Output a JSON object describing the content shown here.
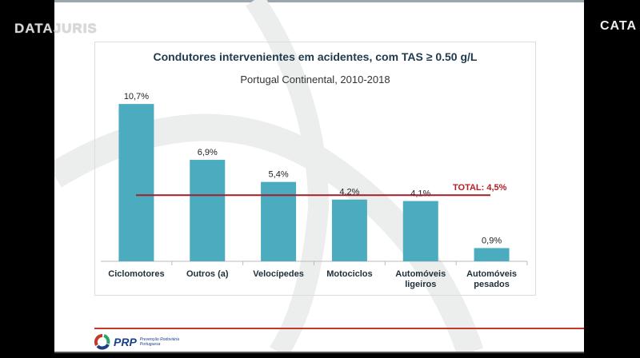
{
  "overlay": {
    "left_logo": "DATAJURIS",
    "right_logo": "CATA"
  },
  "footer": {
    "brand": "PRP",
    "brand_sub_1": "Prevenção Rodoviária",
    "brand_sub_2": "Portuguesa"
  },
  "colors": {
    "bar": "#4bacc0",
    "total_line": "#a01f2a",
    "total_label": "#b01e24"
  },
  "chart_data": {
    "type": "bar",
    "title": "Condutores intervenientes em acidentes, com TAS ≥ 0.50 g/L",
    "subtitle": "Portugal Continental, 2010-2018",
    "categories": [
      [
        "Ciclomotores"
      ],
      [
        "Outros (a)"
      ],
      [
        "Velocípedes"
      ],
      [
        "Motociclos"
      ],
      [
        "Automóveis",
        "ligeiros"
      ],
      [
        "Automóveis",
        "pesados"
      ]
    ],
    "values": [
      10.7,
      6.9,
      5.4,
      4.2,
      4.1,
      0.9
    ],
    "data_labels": [
      "10,7%",
      "6,9%",
      "5,4%",
      "4,2%",
      "4,1%",
      "0,9%"
    ],
    "reference_line": {
      "value": 4.5,
      "label": "TOTAL: 4,5%"
    },
    "ylim": [
      0,
      12
    ],
    "grid": false,
    "legend": "none"
  }
}
